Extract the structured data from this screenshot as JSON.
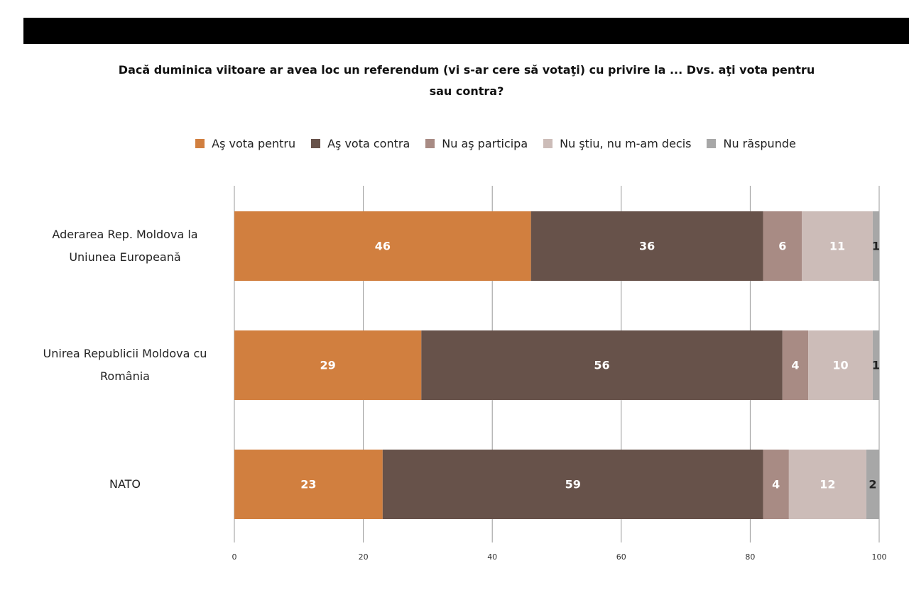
{
  "chart_data": {
    "type": "bar",
    "orientation": "horizontal",
    "stacked": true,
    "title": "Dacă duminica viitoare ar avea loc un referendum (vi s-ar cere să votaţi) cu privire la ... Dvs. aţi vota pentru sau contra?",
    "categories": [
      "Aderarea Rep. Moldova la Uniunea Europeană",
      "Unirea Republicii Moldova cu România",
      "NATO"
    ],
    "series": [
      {
        "name": "Aş vota pentru",
        "color": "#d17f3f",
        "values": [
          46,
          29,
          23
        ]
      },
      {
        "name": "Aş vota contra",
        "color": "#67524a",
        "values": [
          36,
          56,
          59
        ]
      },
      {
        "name": "Nu aş participa",
        "color": "#a88b84",
        "values": [
          6,
          4,
          4
        ]
      },
      {
        "name": "Nu ştiu, nu m-am decis",
        "color": "#ccbcb8",
        "values": [
          11,
          10,
          12
        ]
      },
      {
        "name": "Nu răspunde",
        "color": "#a7a7a7",
        "values": [
          1,
          1,
          2
        ]
      }
    ],
    "xlim": [
      0,
      100
    ],
    "xticks": [
      0,
      20,
      40,
      60,
      80,
      100
    ],
    "grid": true,
    "legend": "top"
  }
}
